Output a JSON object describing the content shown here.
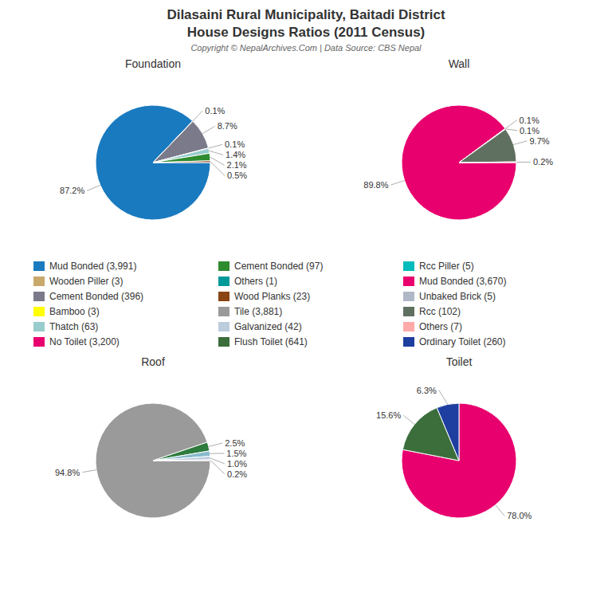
{
  "title": "Dilasaini Rural Municipality, Baitadi District",
  "subtitle": "House Designs Ratios (2011 Census)",
  "annotations": [
    "Copyright © NepalArchives.Com | Data Source: CBS Nepal"
  ],
  "chart_data": [
    {
      "type": "pie",
      "title": "Foundation",
      "values": [
        87.2,
        0.1,
        8.7,
        0.1,
        1.4,
        2.1,
        0.0,
        0.5
      ],
      "value_labels": [
        "87.2%",
        "0.1%",
        "8.7%",
        "0.1%",
        "1.4%",
        "2.1%",
        null,
        "0.5%"
      ],
      "colors": [
        "#1a7abf",
        "#c8a86b",
        "#7a7a8a",
        "#ffff00",
        "#99cccc",
        "#2e8b2e",
        "#009999",
        "#8b4513"
      ],
      "data_labels": true
    },
    {
      "type": "pie",
      "title": "Wall",
      "values": [
        89.8,
        0.1,
        0.1,
        9.7,
        0.2
      ],
      "value_labels": [
        "89.8%",
        "0.1%",
        "0.1%",
        "9.7%",
        "0.2%"
      ],
      "colors": [
        "#e8006e",
        "#00bbbb",
        "#b0b8c8",
        "#607060",
        "#ffaaaa"
      ],
      "data_labels": true
    },
    {
      "type": "pie",
      "title": "Roof",
      "values": [
        94.8,
        2.5,
        1.5,
        1.0,
        0.2
      ],
      "value_labels": [
        "94.8%",
        "2.5%",
        "1.5%",
        "1.0%",
        "0.2%"
      ],
      "colors": [
        "#9a9a9a",
        "#2e7b3e",
        "#88bbcc",
        "#bbccdd",
        "#ffaaaa"
      ],
      "data_labels": true
    },
    {
      "type": "pie",
      "title": "Toilet",
      "values": [
        78.0,
        15.6,
        6.3
      ],
      "value_labels": [
        "78.0%",
        "15.6%",
        "6.3%"
      ],
      "colors": [
        "#e8006e",
        "#3c6e3c",
        "#1e3fa0"
      ],
      "data_labels": true
    }
  ],
  "legend_entries": [
    {
      "name": "Mud Bonded (3,991)",
      "color": "#1a7abf"
    },
    {
      "name": "Wooden Piller (3)",
      "color": "#c8a86b"
    },
    {
      "name": "Cement Bonded (396)",
      "color": "#7a7a8a"
    },
    {
      "name": "Bamboo (3)",
      "color": "#ffff00"
    },
    {
      "name": "Thatch (63)",
      "color": "#99cccc"
    },
    {
      "name": "No Toilet (3,200)",
      "color": "#e8006e"
    },
    {
      "name": "Cement Bonded (97)",
      "color": "#2e8b2e"
    },
    {
      "name": "Others (1)",
      "color": "#009999"
    },
    {
      "name": "Wood Planks (23)",
      "color": "#8b4513"
    },
    {
      "name": "Tile (3,881)",
      "color": "#9a9a9a"
    },
    {
      "name": "Galvanized (42)",
      "color": "#bbccdd"
    },
    {
      "name": "Flush Toilet (641)",
      "color": "#3c6e3c"
    },
    {
      "name": "Rcc Piller (5)",
      "color": "#00bbbb"
    },
    {
      "name": "Mud Bonded (3,670)",
      "color": "#e8006e"
    },
    {
      "name": "Unbaked Brick (5)",
      "color": "#b0b8c8"
    },
    {
      "name": "Rcc (102)",
      "color": "#607060"
    },
    {
      "name": "Others (7)",
      "color": "#ffaaaa"
    },
    {
      "name": "Ordinary Toilet (260)",
      "color": "#1e3fa0"
    }
  ]
}
